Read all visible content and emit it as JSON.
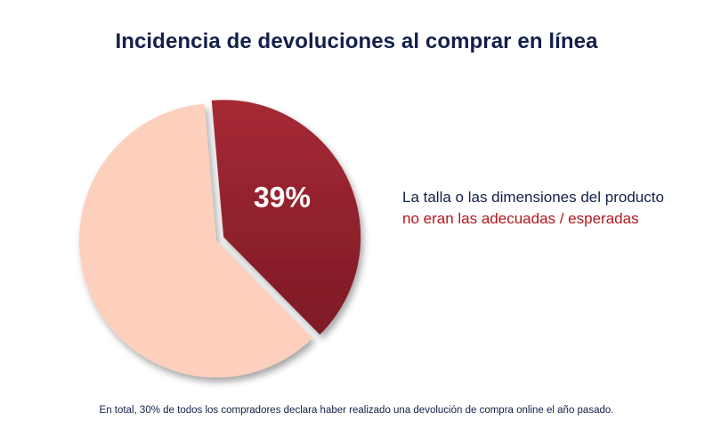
{
  "title": "Incidencia de devoluciones al comprar en línea",
  "footnote": "En total, 30% de todos los compradores declara haber realizado una devolución de compra online el año pasado.",
  "colors": {
    "highlight_slice_start": "#a52a35",
    "highlight_slice_end": "#7d1a25",
    "rest_slice": "#fdd0bd",
    "title": "#13204a",
    "legend_text": "#13204a",
    "legend_accent": "#b5161b",
    "data_label": "#ffffff"
  },
  "chart_data": {
    "type": "pie",
    "slices": [
      {
        "value": 39,
        "data_label": "39%",
        "label_line1": "La talla o las dimensiones del producto",
        "label_line2": "no eran las adecuadas / esperadas",
        "exploded": true
      },
      {
        "value": 61,
        "data_label": "",
        "exploded": false
      }
    ]
  }
}
